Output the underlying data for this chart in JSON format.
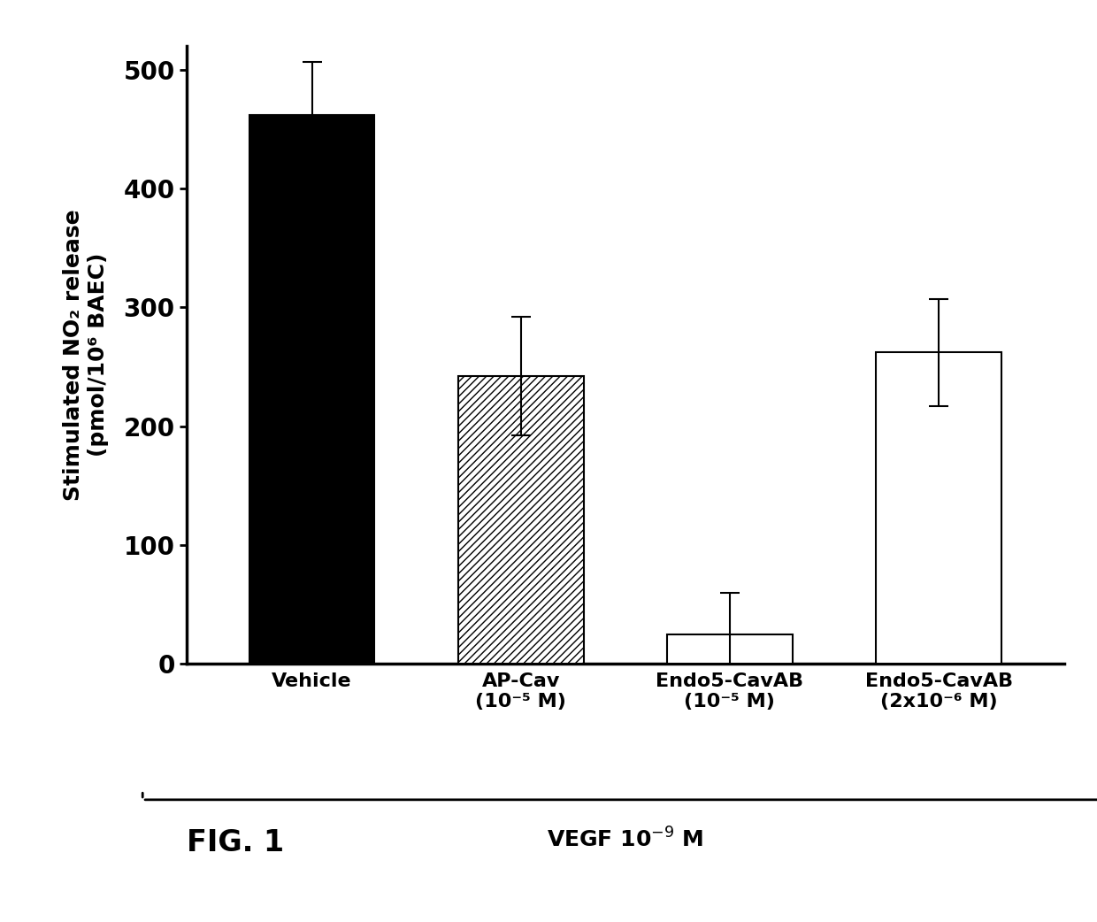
{
  "categories": [
    "Vehicle",
    "AP-Cav\n(10⁻⁵ M)",
    "Endo5-CavAB\n(10⁻⁵ M)",
    "Endo5-CavAB\n(2x10⁻⁶ M)"
  ],
  "values": [
    462,
    242,
    25,
    262
  ],
  "errors": [
    45,
    50,
    35,
    45
  ],
  "bar_colors": [
    "black",
    "hatch_diagonal",
    "white",
    "white"
  ],
  "bar_edge_color": "black",
  "ylabel_line1": "Stimulated NO₂ release",
  "ylabel_line2": "(pmol/10⁶ BAEC)",
  "ylim": [
    0,
    520
  ],
  "yticks": [
    0,
    100,
    200,
    300,
    400,
    500
  ],
  "xlabel_vegf": "VEGF 10⁻⁹ M",
  "fig_label": "FIG. 1",
  "background_color": "#ffffff",
  "bar_width": 0.6,
  "figure_width": 12.4,
  "figure_height": 10.42,
  "dpi": 100
}
